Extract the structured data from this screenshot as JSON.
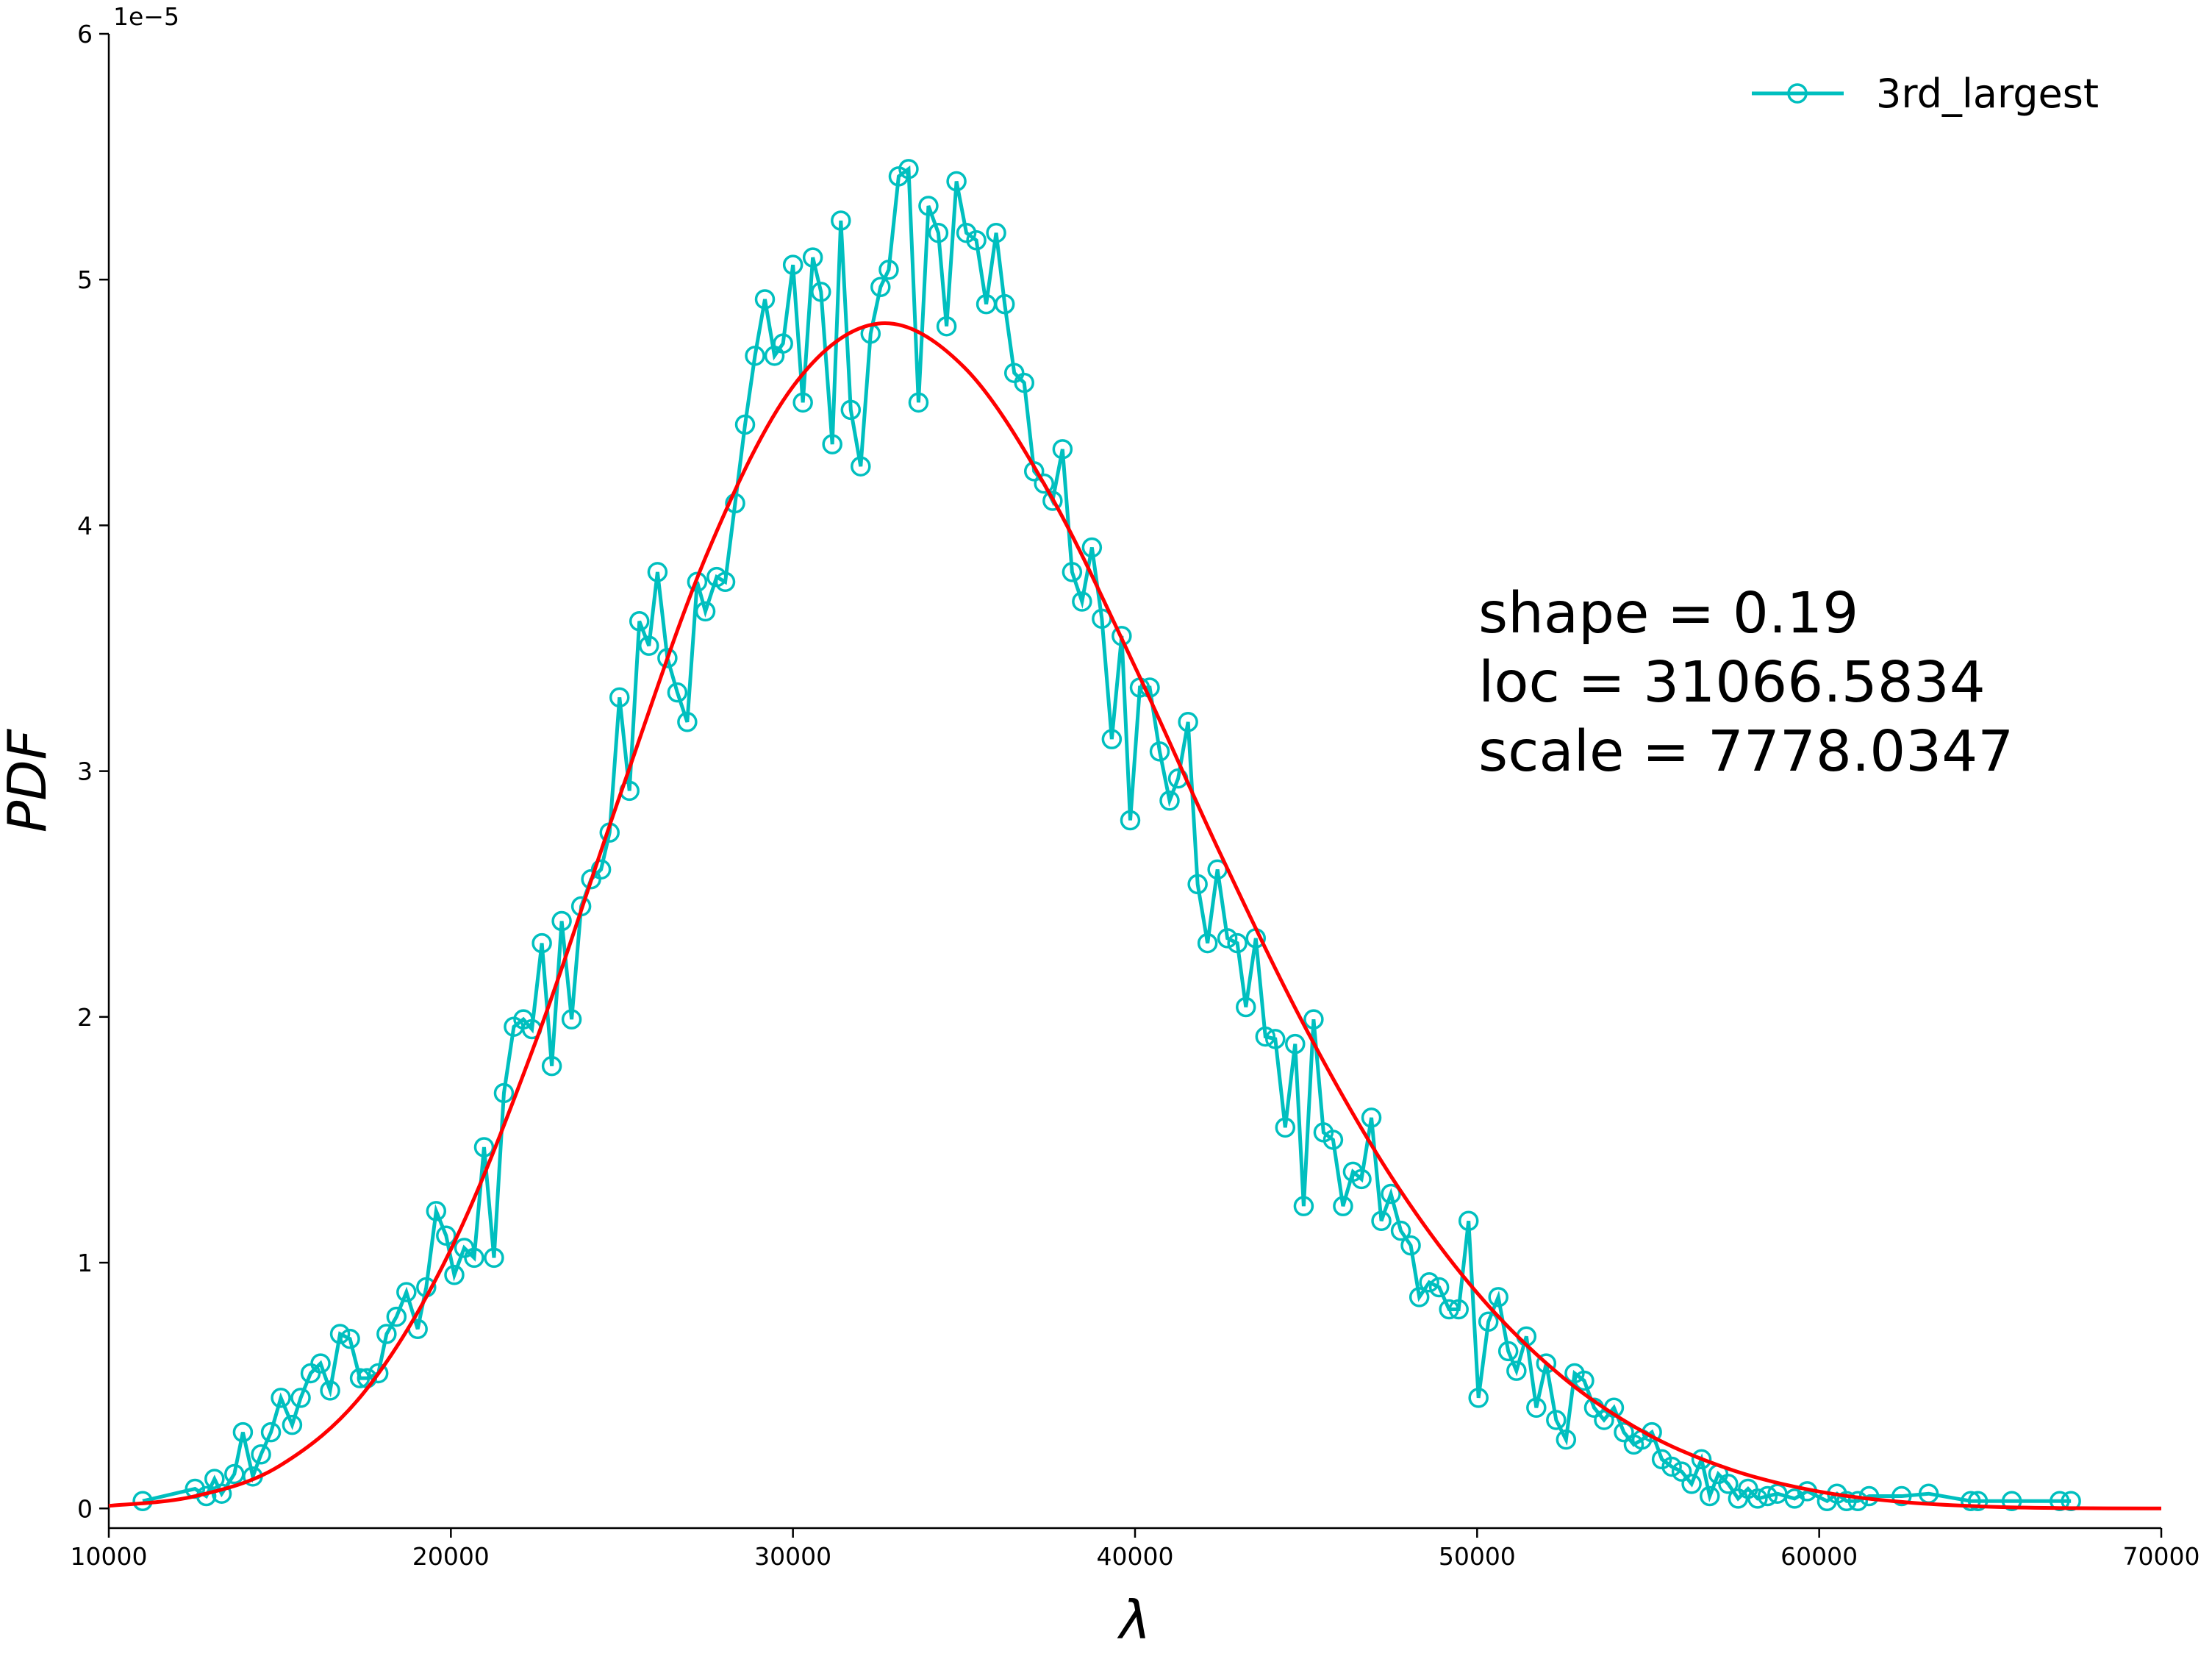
{
  "chart_data": {
    "type": "line",
    "y_offset_label": "1e−5",
    "xlabel": "λ",
    "ylabel": "PDF",
    "xlim": [
      10000,
      70000
    ],
    "xticks": [
      10000,
      20000,
      30000,
      40000,
      50000,
      60000,
      70000
    ],
    "ylim": [
      -0.08,
      6
    ],
    "yticks": [
      0,
      1,
      2,
      3,
      4,
      5,
      6
    ],
    "legend": "upper right",
    "annotations": [
      "shape = 0.19",
      "loc = 31066.5834",
      "scale = 7778.0347"
    ],
    "series": [
      {
        "name": "3rd_largest",
        "color": "#00bfbf",
        "marker": "o",
        "x": [
          10990,
          12520,
          12850,
          13090,
          13300,
          13670,
          13920,
          14210,
          14450,
          14740,
          15030,
          15360,
          15610,
          15900,
          16190,
          16470,
          16760,
          17050,
          17340,
          17550,
          17880,
          18120,
          18410,
          18700,
          19030,
          19280,
          19570,
          19860,
          20100,
          20390,
          20680,
          20970,
          21260,
          21550,
          21840,
          22120,
          22370,
          22660,
          22950,
          23240,
          23530,
          23810,
          24100,
          24390,
          24640,
          24930,
          25220,
          25510,
          25790,
          26040,
          26330,
          26620,
          26910,
          27200,
          27440,
          27770,
          28020,
          28310,
          28600,
          28890,
          29180,
          29460,
          29710,
          30000,
          30290,
          30580,
          30820,
          31150,
          31400,
          31690,
          31980,
          32270,
          32560,
          32800,
          33090,
          33380,
          33670,
          33960,
          34250,
          34490,
          34780,
          35070,
          35360,
          35650,
          35940,
          36190,
          36470,
          36760,
          37050,
          37340,
          37590,
          37880,
          38160,
          38450,
          38740,
          39030,
          39320,
          39610,
          39860,
          40140,
          40430,
          40720,
          41010,
          41260,
          41550,
          41830,
          42120,
          42410,
          42700,
          42990,
          43240,
          43530,
          43810,
          44100,
          44390,
          44680,
          44930,
          45220,
          45510,
          45790,
          46080,
          46370,
          46620,
          46910,
          47200,
          47480,
          47770,
          48060,
          48310,
          48600,
          48890,
          49180,
          49460,
          49750,
          50040,
          50330,
          50620,
          50910,
          51150,
          51440,
          51730,
          52020,
          52310,
          52600,
          52850,
          53130,
          53420,
          53710,
          54000,
          54290,
          54580,
          54820,
          55110,
          55400,
          55690,
          55980,
          56270,
          56560,
          56800,
          57050,
          57340,
          57630,
          57920,
          58200,
          58490,
          58780,
          59280,
          59650,
          60230,
          60520,
          60800,
          61130,
          61460,
          62410,
          63200,
          64430,
          64640,
          65630,
          67030,
          67360
        ],
        "values": [
          0.03,
          0.08,
          0.05,
          0.12,
          0.06,
          0.14,
          0.31,
          0.13,
          0.22,
          0.31,
          0.45,
          0.34,
          0.45,
          0.55,
          0.59,
          0.48,
          0.71,
          0.69,
          0.53,
          0.53,
          0.55,
          0.71,
          0.78,
          0.88,
          0.73,
          0.9,
          1.21,
          1.11,
          0.95,
          1.06,
          1.02,
          1.47,
          1.02,
          1.69,
          1.96,
          1.99,
          1.95,
          2.3,
          1.8,
          2.39,
          1.99,
          2.45,
          2.56,
          2.6,
          2.75,
          3.3,
          2.92,
          3.61,
          3.51,
          3.81,
          3.46,
          3.32,
          3.2,
          3.77,
          3.65,
          3.79,
          3.77,
          4.09,
          4.41,
          4.69,
          4.92,
          4.69,
          4.74,
          5.06,
          4.5,
          5.09,
          4.95,
          4.33,
          5.24,
          4.47,
          4.24,
          4.78,
          4.97,
          5.04,
          5.42,
          5.45,
          4.5,
          5.3,
          5.19,
          4.81,
          5.4,
          5.19,
          5.16,
          4.9,
          5.19,
          4.9,
          4.62,
          4.58,
          4.22,
          4.17,
          4.1,
          4.31,
          3.81,
          3.69,
          3.91,
          3.62,
          3.13,
          3.55,
          2.8,
          3.34,
          3.34,
          3.08,
          2.88,
          2.97,
          3.2,
          2.54,
          2.3,
          2.6,
          2.32,
          2.3,
          2.04,
          2.32,
          1.92,
          1.91,
          1.55,
          1.89,
          1.23,
          1.99,
          1.53,
          1.5,
          1.23,
          1.37,
          1.34,
          1.59,
          1.17,
          1.28,
          1.13,
          1.07,
          0.86,
          0.92,
          0.9,
          0.81,
          0.81,
          1.17,
          0.45,
          0.76,
          0.86,
          0.64,
          0.56,
          0.7,
          0.41,
          0.59,
          0.36,
          0.28,
          0.55,
          0.52,
          0.41,
          0.36,
          0.41,
          0.31,
          0.26,
          0.28,
          0.31,
          0.2,
          0.17,
          0.15,
          0.1,
          0.2,
          0.05,
          0.14,
          0.1,
          0.04,
          0.08,
          0.04,
          0.05,
          0.06,
          0.04,
          0.07,
          0.03,
          0.06,
          0.03,
          0.03,
          0.05,
          0.05,
          0.06,
          0.03,
          0.03,
          0.03,
          0.03,
          0.03
        ]
      }
    ],
    "fit": {
      "color": "#ff0000",
      "x": [
        10000,
        12500,
        15000,
        17500,
        20000,
        22500,
        25000,
        27500,
        30000,
        32500,
        35000,
        37500,
        40000,
        42500,
        45000,
        47500,
        50000,
        52500,
        55000,
        57500,
        60000,
        62500,
        65000,
        67500,
        70000
      ],
      "values": [
        0.0104,
        0.0492,
        0.174,
        0.479,
        1.054,
        1.907,
        2.924,
        3.888,
        4.565,
        4.821,
        4.644,
        4.13,
        3.424,
        2.662,
        1.951,
        1.348,
        0.877,
        0.534,
        0.301,
        0.154,
        0.0687,
        0.0254,
        0.0069,
        0.00105,
        3e-05
      ]
    }
  }
}
